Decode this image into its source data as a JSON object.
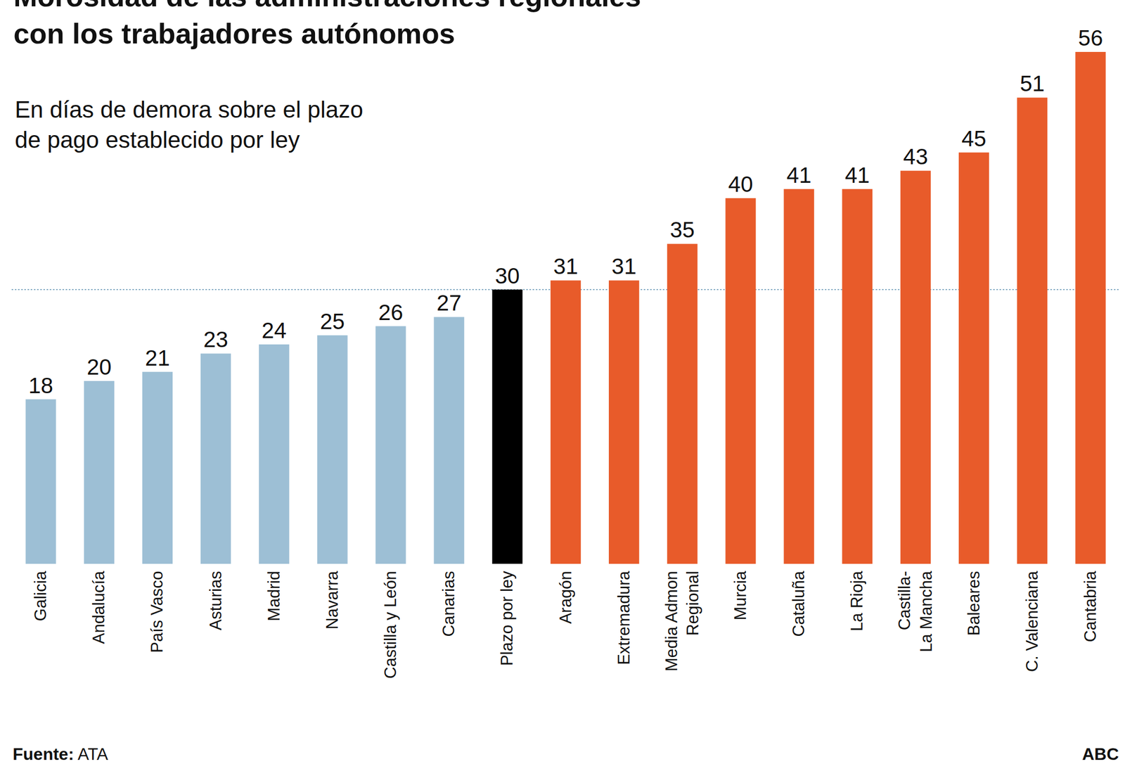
{
  "chart_data": {
    "type": "bar",
    "title": "Morosidad de las administraciones regionales\ncon los trabajadores autónomos",
    "subtitle": "En días de demora sobre el plazo\nde pago establecido por ley",
    "source": "Fuente: ATA",
    "credit": "ABC",
    "categories": [
      "Galicia",
      "Andalucía",
      "País Vasco",
      "Asturias",
      "Madrid",
      "Navarra",
      "Castilla y León",
      "Canarias",
      "Plazo por ley",
      "Aragón",
      "Extremadura",
      "Media Admon\nRegional",
      "Murcia",
      "Cataluña",
      "La Rioja",
      "Castilla-\nLa Mancha",
      "Baleares",
      "C. Valenciana",
      "Cantabria"
    ],
    "values": [
      18,
      20,
      21,
      23,
      24,
      25,
      26,
      27,
      30,
      31,
      31,
      35,
      40,
      41,
      41,
      43,
      45,
      51,
      56
    ],
    "colors": [
      "#9dbfd5",
      "#9dbfd5",
      "#9dbfd5",
      "#9dbfd5",
      "#9dbfd5",
      "#9dbfd5",
      "#9dbfd5",
      "#9dbfd5",
      "#000000",
      "#e85b2a",
      "#e85b2a",
      "#e85b2a",
      "#e85b2a",
      "#e85b2a",
      "#e85b2a",
      "#e85b2a",
      "#e85b2a",
      "#e85b2a",
      "#e85b2a"
    ],
    "reference_line": 30,
    "ylim": [
      0,
      56
    ],
    "yticks": [],
    "grid": false,
    "data_labels": true,
    "tick_labels": "x"
  }
}
